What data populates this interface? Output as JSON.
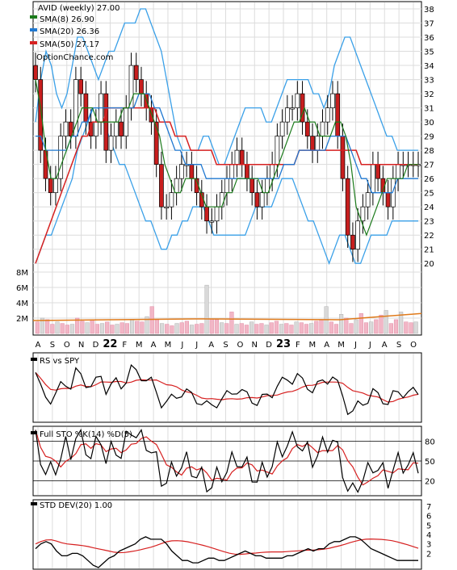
{
  "chart_data": {
    "type": "line",
    "main": {
      "title": "AVID (weekly) 27.00",
      "watermark": "OptionChance.com",
      "legend": [
        {
          "label": "SMA(8) 26.90",
          "color": "#1a7a1a"
        },
        {
          "label": "SMA(20) 26.36",
          "color": "#1f78d1"
        },
        {
          "label": "SMA(50) 27.17",
          "color": "#d62020"
        }
      ],
      "price_ylim": [
        19.5,
        38.4
      ],
      "price_ticks": [
        20,
        21,
        22,
        23,
        24,
        25,
        26,
        27,
        28,
        29,
        30,
        31,
        32,
        33,
        34,
        35,
        36,
        37,
        38
      ],
      "volume_ticks": [
        "2M",
        "4M",
        "6M",
        "8M"
      ],
      "volume_tick_values": [
        2,
        4,
        6,
        8
      ],
      "volume_ylim": [
        0,
        8
      ],
      "x_labels": [
        "A",
        "S",
        "O",
        "N",
        "D",
        "22",
        "F",
        "M",
        "A",
        "M",
        "J",
        "J",
        "A",
        "S",
        "O",
        "N",
        "D",
        "23",
        "F",
        "M",
        "A",
        "M",
        "J",
        "J",
        "A",
        "S",
        "O"
      ],
      "bold_x_labels": [
        "22",
        "23"
      ],
      "grid": true,
      "price_series": {
        "close": [
          33,
          28,
          26,
          25,
          26,
          29,
          30,
          29,
          33,
          32,
          30,
          29,
          30,
          32,
          28,
          29,
          30,
          29,
          31,
          34,
          33,
          32,
          31,
          30,
          27,
          24,
          24,
          25,
          26,
          27,
          27,
          26,
          25,
          24,
          23,
          23,
          24,
          25,
          26,
          27,
          28,
          27,
          26,
          25,
          24,
          25,
          26,
          27,
          29,
          30,
          31,
          31,
          32,
          30,
          29,
          28,
          29,
          30,
          31,
          32,
          29,
          26,
          22,
          21,
          23,
          24,
          25,
          27,
          26,
          25,
          24,
          26,
          27,
          27,
          27,
          27,
          27
        ],
        "upper_bb": [
          30,
          33,
          35,
          34,
          32,
          31,
          32,
          34,
          36,
          36,
          35,
          34,
          33,
          34,
          35,
          35,
          36,
          37,
          37,
          37,
          38,
          38,
          37,
          36,
          35,
          33,
          31,
          29,
          28,
          28,
          28,
          28,
          29,
          29,
          28,
          27,
          27,
          28,
          29,
          30,
          31,
          31,
          31,
          31,
          30,
          30,
          31,
          32,
          33,
          33,
          33,
          33,
          33,
          32,
          32,
          31,
          32,
          34,
          35,
          36,
          36,
          35,
          34,
          33,
          32,
          31,
          30,
          29,
          29,
          28,
          28,
          28,
          28,
          28
        ],
        "lower_bb": [
          20,
          21,
          22,
          22,
          23,
          24,
          25,
          26,
          28,
          29,
          30,
          31,
          31,
          30,
          29,
          28,
          27,
          27,
          26,
          25,
          24,
          23,
          23,
          22,
          21,
          21,
          22,
          22,
          23,
          23,
          24,
          24,
          24,
          23,
          22,
          22,
          22,
          22,
          22,
          22,
          22,
          23,
          24,
          24,
          24,
          24,
          25,
          26,
          26,
          26,
          25,
          24,
          23,
          23,
          22,
          21,
          20,
          21,
          22,
          22,
          21,
          20,
          20,
          21,
          22,
          22,
          22,
          22,
          23,
          23,
          23,
          23,
          23,
          23
        ],
        "sma8": [
          33,
          31,
          28,
          26,
          26,
          27,
          28,
          29,
          30,
          31,
          31,
          31,
          30,
          30,
          30,
          30,
          30,
          31,
          31,
          32,
          32,
          32,
          31,
          30,
          29,
          27,
          26,
          25,
          25,
          26,
          26,
          26,
          25,
          24,
          24,
          24,
          24,
          25,
          25,
          26,
          26,
          26,
          26,
          26,
          25,
          25,
          26,
          27,
          28,
          29,
          30,
          30,
          31,
          30,
          30,
          29,
          29,
          29,
          30,
          30,
          29,
          27,
          24,
          23,
          22,
          23,
          24,
          25,
          26,
          26,
          26,
          26,
          27,
          27,
          27
        ],
        "sma20": [
          29,
          29,
          28,
          28,
          28,
          28,
          28,
          29,
          29,
          30,
          30,
          31,
          31,
          31,
          31,
          31,
          31,
          31,
          31,
          31,
          32,
          32,
          32,
          31,
          31,
          30,
          29,
          28,
          28,
          27,
          27,
          27,
          27,
          26,
          26,
          26,
          26,
          26,
          26,
          26,
          26,
          26,
          26,
          26,
          26,
          26,
          26,
          26,
          27,
          27,
          27,
          28,
          28,
          28,
          28,
          28,
          28,
          29,
          29,
          29,
          29,
          28,
          27,
          26,
          26,
          25,
          25,
          25,
          25,
          25,
          26,
          26,
          26,
          26,
          26
        ],
        "sma50": [
          20,
          21,
          22,
          23,
          24,
          25,
          26,
          27,
          28,
          29,
          29,
          30,
          30,
          30,
          31,
          31,
          31,
          31,
          31,
          31,
          31,
          31,
          31,
          31,
          30,
          30,
          30,
          29,
          29,
          29,
          28,
          28,
          28,
          28,
          28,
          27,
          27,
          27,
          27,
          27,
          27,
          27,
          27,
          27,
          27,
          27,
          27,
          27,
          27,
          27,
          27,
          28,
          28,
          28,
          28,
          28,
          28,
          28,
          28,
          28,
          28,
          28,
          28,
          27,
          27,
          27,
          27,
          27,
          27,
          27,
          27,
          27,
          27,
          27,
          27
        ]
      },
      "volume_m": [
        1.5,
        2,
        1.8,
        1.2,
        1.5,
        1.3,
        1.1,
        1.2,
        2.0,
        1.6,
        1.4,
        1.8,
        1.2,
        1.3,
        1.5,
        1.1,
        1.2,
        1.4,
        1.3,
        1.8,
        1.6,
        1.5,
        2.2,
        3.5,
        1.8,
        1.3,
        1.2,
        1.0,
        1.3,
        1.4,
        1.6,
        1.1,
        1.2,
        1.3,
        6.3,
        1.9,
        1.8,
        1.4,
        1.3,
        2.8,
        1.2,
        1.3,
        1.1,
        1.5,
        1.2,
        1.3,
        1.1,
        1.4,
        1.6,
        1.2,
        1.3,
        1.1,
        1.5,
        1.4,
        1.2,
        1.3,
        1.6,
        1.8,
        3.5,
        1.5,
        1.2,
        2.5,
        2.0,
        1.3,
        1.8,
        2.6,
        1.4,
        1.5,
        1.8,
        2.4,
        3.0,
        1.3,
        1.8,
        2.8,
        1.5,
        1.4,
        1.5
      ],
      "volume_avg_m": 1.9
    },
    "panels": [
      {
        "name": "rs",
        "title": "RS vs SPY"
      },
      {
        "name": "sto",
        "title": "Full STO %K(14) %D(5)",
        "ylim": [
          0,
          100
        ],
        "ticks": [
          20,
          50,
          80
        ]
      },
      {
        "name": "std",
        "title": "STD DEV(20) 1.00",
        "ylim": [
          0.5,
          7.5
        ],
        "ticks": [
          2,
          3,
          4,
          5,
          6,
          7
        ]
      }
    ]
  }
}
